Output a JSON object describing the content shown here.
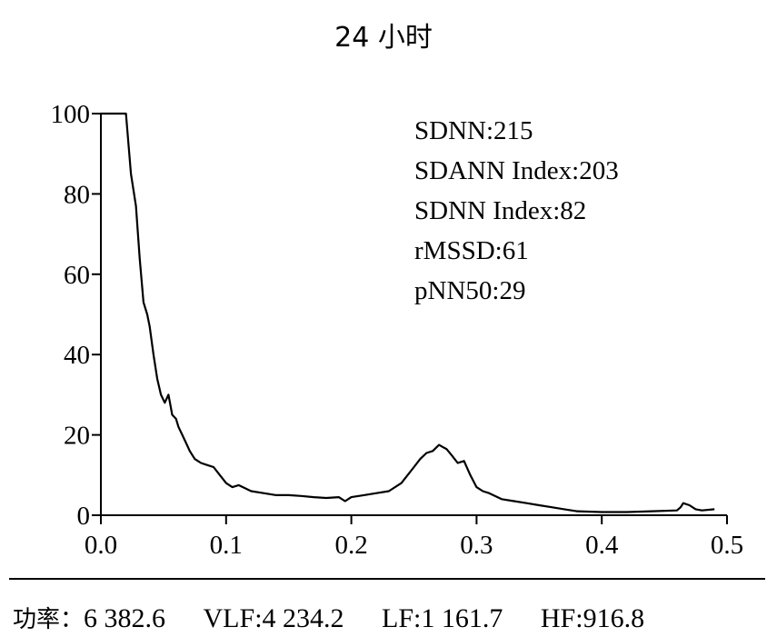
{
  "title": "24 小时",
  "stats": [
    "SDNN:215",
    "SDANN Index:203",
    "SDNN Index:82",
    "rMSSD:61",
    "pNN50:29"
  ],
  "footer": {
    "power_label": "功率：",
    "power_value": "6 382.6",
    "vlf": "VLF:4 234.2",
    "lf": "LF:1 161.7",
    "hf": "HF:916.8"
  },
  "chart_data": {
    "type": "line",
    "title": "24 小时",
    "xlabel": "",
    "ylabel": "",
    "xlim": [
      0.0,
      0.5
    ],
    "ylim": [
      0,
      100
    ],
    "xticks": [
      "0.0",
      "0.1",
      "0.2",
      "0.3",
      "0.4",
      "0.5"
    ],
    "yticks": [
      "0",
      "20",
      "40",
      "60",
      "80",
      "100"
    ],
    "grid": false,
    "series": [
      {
        "x": [
          0.0,
          0.02,
          0.024,
          0.028,
          0.031,
          0.034,
          0.037,
          0.039,
          0.042,
          0.045,
          0.048,
          0.051,
          0.054,
          0.057,
          0.06,
          0.062,
          0.065,
          0.068,
          0.071,
          0.075,
          0.08,
          0.085,
          0.09,
          0.095,
          0.1,
          0.105,
          0.11,
          0.12,
          0.13,
          0.14,
          0.15,
          0.16,
          0.17,
          0.18,
          0.19,
          0.195,
          0.2,
          0.21,
          0.22,
          0.23,
          0.24,
          0.25,
          0.255,
          0.26,
          0.265,
          0.27,
          0.273,
          0.276,
          0.28,
          0.285,
          0.29,
          0.295,
          0.3,
          0.305,
          0.31,
          0.32,
          0.33,
          0.34,
          0.35,
          0.36,
          0.37,
          0.38,
          0.4,
          0.42,
          0.44,
          0.46,
          0.463,
          0.465,
          0.47,
          0.475,
          0.48,
          0.49
        ],
        "y": [
          100,
          100,
          85,
          77,
          64,
          53,
          50,
          47,
          40,
          34,
          30,
          28,
          30,
          25,
          24,
          22,
          20,
          18,
          16,
          14,
          13,
          12.5,
          12,
          10,
          8,
          7,
          7.5,
          6,
          5.5,
          5,
          5,
          4.8,
          4.5,
          4.3,
          4.5,
          3.5,
          4.5,
          5,
          5.5,
          6,
          8,
          12,
          14,
          15.5,
          16,
          17.5,
          17,
          16.5,
          15,
          13,
          13.5,
          10,
          7,
          6,
          5.5,
          4,
          3.5,
          3,
          2.5,
          2,
          1.5,
          1,
          0.8,
          0.8,
          1,
          1.2,
          2,
          3,
          2.5,
          1.5,
          1.2,
          1.5
        ]
      }
    ]
  }
}
